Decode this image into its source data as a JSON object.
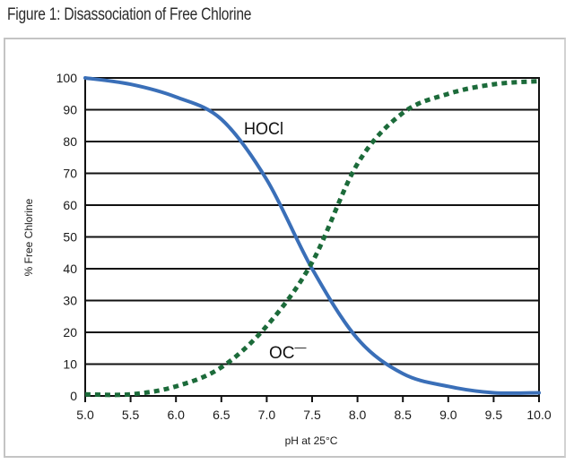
{
  "figure": {
    "title": "Figure 1: Disassociation of Free Chlorine"
  },
  "colors": {
    "hocl": "#3a6fb8",
    "ocl": "#1c6b3a",
    "grid": "#111111",
    "frame": "#c4c4c4"
  },
  "chart_data": {
    "type": "line",
    "title": "Figure 1: Disassociation of Free Chlorine",
    "xlabel": "pH at 25°C",
    "ylabel": "% Free Chlorine",
    "xlim": [
      5.0,
      10.0
    ],
    "ylim": [
      0,
      100
    ],
    "x_ticks": [
      "5.0",
      "5.5",
      "6.0",
      "6.5",
      "7.0",
      "7.5",
      "8.0",
      "8.5",
      "9.0",
      "9.5",
      "10.0"
    ],
    "y_ticks": [
      "0",
      "10",
      "20",
      "30",
      "40",
      "50",
      "60",
      "70",
      "80",
      "90",
      "100"
    ],
    "grid": "horizontal",
    "legend": "inline labels",
    "x": [
      5.0,
      5.5,
      6.0,
      6.5,
      7.0,
      7.5,
      8.0,
      8.5,
      9.0,
      9.5,
      10.0
    ],
    "series": [
      {
        "name": "HOCl",
        "label": "HOCl",
        "style": "solid",
        "values": [
          100,
          98,
          94,
          87,
          68,
          40,
          18,
          7,
          3,
          1,
          1
        ]
      },
      {
        "name": "OCl-",
        "label": "OC",
        "label_sup": "—",
        "style": "dashed",
        "values": [
          0.5,
          0.5,
          3,
          9,
          22,
          42,
          73,
          89,
          95,
          98,
          99
        ]
      }
    ],
    "annotations": [
      {
        "text": "HOCl",
        "x": 7.2,
        "y": 84
      },
      {
        "text": "OCl⁻",
        "x": 7.3,
        "y": 14
      }
    ]
  }
}
